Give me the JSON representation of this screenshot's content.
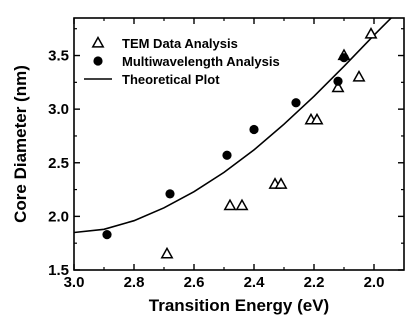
{
  "chart_data": {
    "type": "scatter",
    "title": "",
    "xlabel": "Transition Energy (eV)",
    "ylabel": "Core Diameter (nm)",
    "xlim": [
      3.0,
      1.9
    ],
    "ylim": [
      1.5,
      3.85
    ],
    "x_reversed": true,
    "grid": false,
    "legend_position": "top-left",
    "xticks": [
      3.0,
      2.8,
      2.6,
      2.4,
      2.2,
      2.0
    ],
    "xtick_labels": [
      "3.0",
      "2.8",
      "2.6",
      "2.4",
      "2.2",
      "2.0"
    ],
    "yticks": [
      1.5,
      2.0,
      2.5,
      3.0,
      3.5
    ],
    "ytick_labels": [
      "1.5",
      "2.0",
      "2.5",
      "3.0",
      "3.5"
    ],
    "series": [
      {
        "name": "TEM Data Analysis",
        "marker": "open-triangle",
        "color": "#000000",
        "x": [
          2.69,
          2.48,
          2.44,
          2.33,
          2.31,
          2.21,
          2.19,
          2.12,
          2.1,
          2.05,
          2.01
        ],
        "y": [
          1.65,
          2.1,
          2.1,
          2.3,
          2.3,
          2.9,
          2.9,
          3.2,
          3.5,
          3.3,
          3.7
        ]
      },
      {
        "name": "Multiwavelength Analysis",
        "marker": "filled-circle",
        "color": "#000000",
        "x": [
          2.89,
          2.68,
          2.49,
          2.4,
          2.26,
          2.12,
          2.1
        ],
        "y": [
          1.83,
          2.21,
          2.57,
          2.81,
          3.06,
          3.26,
          3.48
        ]
      },
      {
        "name": "Theoretical Plot",
        "marker": "line",
        "color": "#000000",
        "x": [
          3.0,
          2.9,
          2.8,
          2.7,
          2.6,
          2.5,
          2.4,
          2.3,
          2.2,
          2.1,
          2.0,
          1.9
        ],
        "y": [
          1.85,
          1.88,
          1.96,
          2.08,
          2.23,
          2.41,
          2.62,
          2.86,
          3.12,
          3.4,
          3.69,
          3.97
        ]
      }
    ]
  }
}
